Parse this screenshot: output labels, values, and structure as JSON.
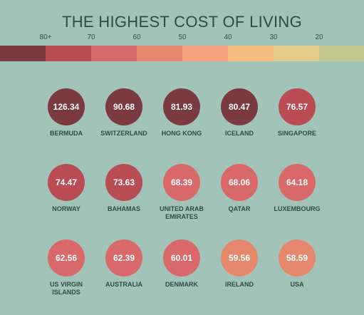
{
  "title": "THE HIGHEST COST OF LIVING",
  "scale": {
    "labels": [
      "80+",
      "70",
      "60",
      "50",
      "40",
      "30",
      "20"
    ],
    "colors": [
      "#7b3a40",
      "#b94d53",
      "#d9686b",
      "#e5876d",
      "#f4a380",
      "#f8be81",
      "#e5ce8a",
      "#c1c98f"
    ]
  },
  "countries": [
    {
      "name": "BERMUDA",
      "value": "126.34",
      "color": "#7b3a40"
    },
    {
      "name": "SWITZERLAND",
      "value": "90.68",
      "color": "#7b3a40"
    },
    {
      "name": "HONG KONG",
      "value": "81.93",
      "color": "#7b3a40"
    },
    {
      "name": "ICELAND",
      "value": "80.47",
      "color": "#7b3a40"
    },
    {
      "name": "SINGAPORE",
      "value": "76.57",
      "color": "#b94d53"
    },
    {
      "name": "NORWAY",
      "value": "74.47",
      "color": "#b94d53"
    },
    {
      "name": "BAHAMAS",
      "value": "73.63",
      "color": "#b94d53"
    },
    {
      "name": "UNITED ARAB EMIRATES",
      "value": "68.39",
      "color": "#d9686b"
    },
    {
      "name": "QATAR",
      "value": "68.06",
      "color": "#d9686b"
    },
    {
      "name": "LUXEMBOURG",
      "value": "64.18",
      "color": "#d9686b"
    },
    {
      "name": "US VIRGIN ISLANDS",
      "value": "62.56",
      "color": "#d9686b"
    },
    {
      "name": "AUSTRALIA",
      "value": "62.39",
      "color": "#d9686b"
    },
    {
      "name": "DENMARK",
      "value": "60.01",
      "color": "#d9686b"
    },
    {
      "name": "IRELAND",
      "value": "59.56",
      "color": "#e5876d"
    },
    {
      "name": "USA",
      "value": "58.59",
      "color": "#e5876d"
    }
  ]
}
